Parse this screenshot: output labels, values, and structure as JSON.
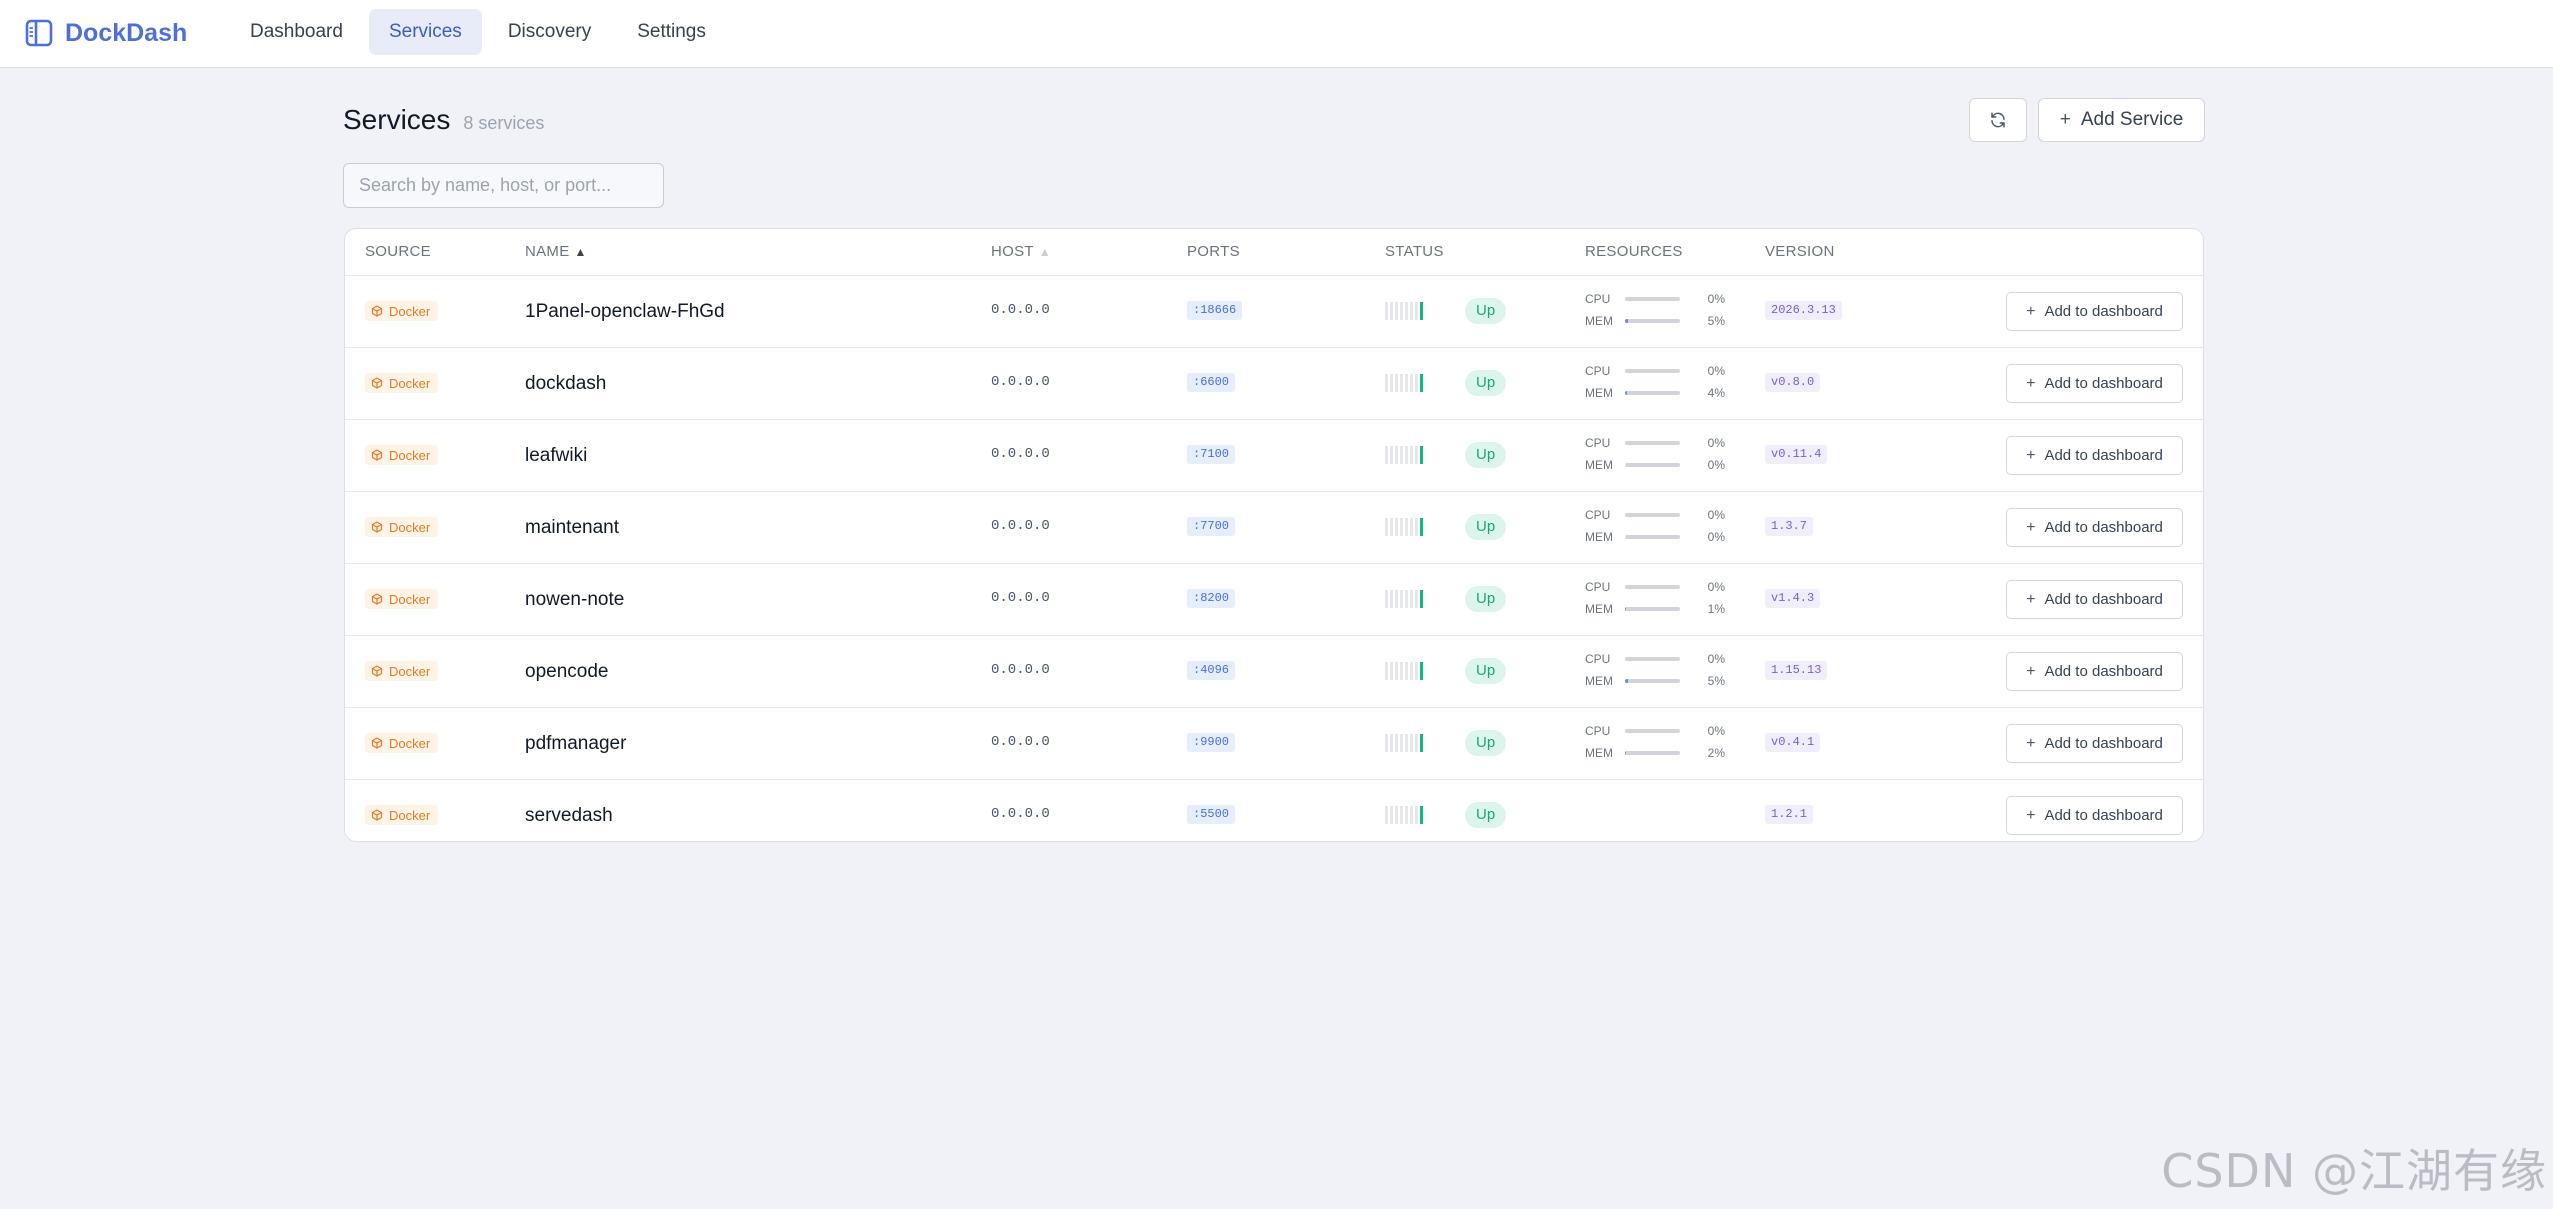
{
  "brand": {
    "name": "DockDash"
  },
  "nav": [
    {
      "label": "Dashboard",
      "active": false
    },
    {
      "label": "Services",
      "active": true
    },
    {
      "label": "Discovery",
      "active": false
    },
    {
      "label": "Settings",
      "active": false
    }
  ],
  "page": {
    "title": "Services",
    "count": "8 services"
  },
  "toolbar": {
    "add_service": "Add Service"
  },
  "search": {
    "placeholder": "Search by name, host, or port..."
  },
  "table": {
    "headers": {
      "source": "SOURCE",
      "name": "NAME",
      "host": "HOST",
      "ports": "PORTS",
      "status": "STATUS",
      "resources": "RESOURCES",
      "version": "VERSION"
    },
    "cpu_label": "CPU",
    "mem_label": "MEM",
    "action_label": "Add to dashboard",
    "rows": [
      {
        "source": "Docker",
        "name": "1Panel-openclaw-FhGd",
        "host": "0.0.0.0",
        "port": ":18666",
        "status": "Up",
        "cpu": "0%",
        "cpu_frac": 0.0,
        "mem": "5%",
        "mem_frac": 0.05,
        "version": "2026.3.13"
      },
      {
        "source": "Docker",
        "name": "dockdash",
        "host": "0.0.0.0",
        "port": ":6600",
        "status": "Up",
        "cpu": "0%",
        "cpu_frac": 0.0,
        "mem": "4%",
        "mem_frac": 0.04,
        "version": "v0.8.0"
      },
      {
        "source": "Docker",
        "name": "leafwiki",
        "host": "0.0.0.0",
        "port": ":7100",
        "status": "Up",
        "cpu": "0%",
        "cpu_frac": 0.0,
        "mem": "0%",
        "mem_frac": 0.0,
        "version": "v0.11.4"
      },
      {
        "source": "Docker",
        "name": "maintenant",
        "host": "0.0.0.0",
        "port": ":7700",
        "status": "Up",
        "cpu": "0%",
        "cpu_frac": 0.0,
        "mem": "0%",
        "mem_frac": 0.0,
        "version": "1.3.7"
      },
      {
        "source": "Docker",
        "name": "nowen-note",
        "host": "0.0.0.0",
        "port": ":8200",
        "status": "Up",
        "cpu": "0%",
        "cpu_frac": 0.0,
        "mem": "1%",
        "mem_frac": 0.01,
        "version": "v1.4.3"
      },
      {
        "source": "Docker",
        "name": "opencode",
        "host": "0.0.0.0",
        "port": ":4096",
        "status": "Up",
        "cpu": "0%",
        "cpu_frac": 0.0,
        "mem": "5%",
        "mem_frac": 0.05,
        "version": "1.15.13"
      },
      {
        "source": "Docker",
        "name": "pdfmanager",
        "host": "0.0.0.0",
        "port": ":9900",
        "status": "Up",
        "cpu": "0%",
        "cpu_frac": 0.0,
        "mem": "2%",
        "mem_frac": 0.02,
        "version": "v0.4.1"
      },
      {
        "source": "Docker",
        "name": "servedash",
        "host": "0.0.0.0",
        "port": ":5500",
        "status": "Up",
        "cpu": null,
        "cpu_frac": null,
        "mem": null,
        "mem_frac": null,
        "version": "1.2.1"
      }
    ]
  },
  "watermark": "CSDN @江湖有缘",
  "colors": {
    "accent": "#4f6fd8",
    "up": "#10b981",
    "docker": "#e07b2a",
    "port": "#4a6fd6",
    "version": "#7c5cd6"
  }
}
